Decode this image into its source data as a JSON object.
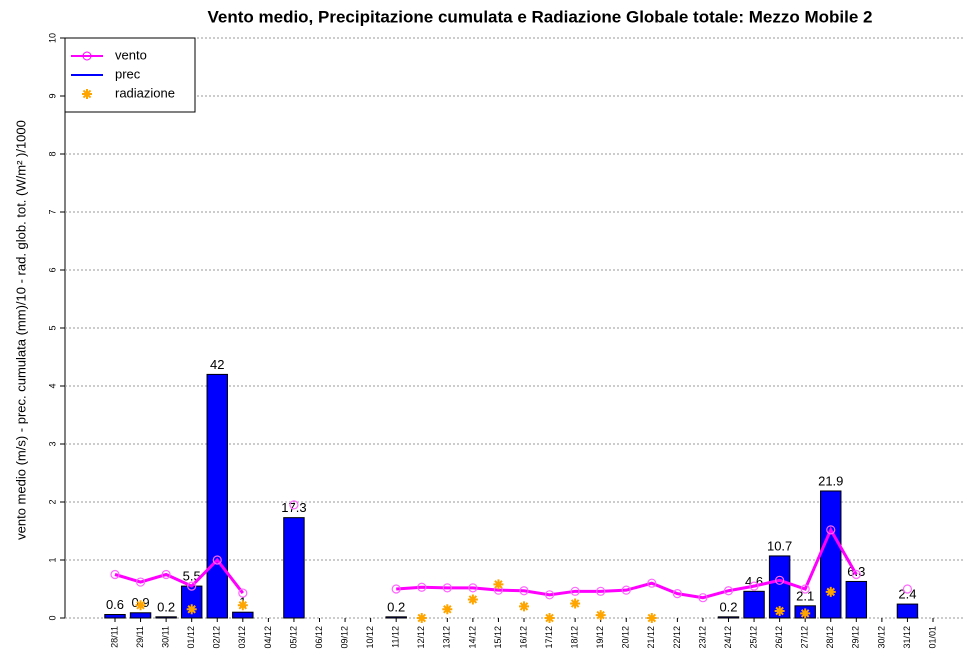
{
  "chart_data": {
    "type": "combo",
    "title": "Vento medio, Precipitazione cumulata e Radiazione Globale totale: Mezzo Mobile 2",
    "y_label": "vento medio (m/s) - prec. cumulata (mm)/10 - rad. glob. tot. (W/m² )/1000",
    "categories": [
      "28/11",
      "29/11",
      "30/11",
      "01/12",
      "02/12",
      "03/12",
      "04/12",
      "05/12",
      "06/12",
      "09/12",
      "10/12",
      "11/12",
      "12/12",
      "13/12",
      "14/12",
      "15/12",
      "16/12",
      "17/12",
      "18/12",
      "19/12",
      "20/12",
      "21/12",
      "22/12",
      "23/12",
      "24/12",
      "25/12",
      "26/12",
      "27/12",
      "28/12",
      "29/12",
      "30/12",
      "31/12",
      "01/01"
    ],
    "ylim": [
      0,
      10
    ],
    "yticks": [
      0,
      1,
      2,
      3,
      4,
      5,
      6,
      7,
      8,
      9,
      10
    ],
    "grid": true,
    "legend": "top-left",
    "series": [
      {
        "name": "vento",
        "type": "line",
        "color": "#ff00ff",
        "values": [
          0.75,
          0.62,
          0.75,
          0.55,
          1.0,
          0.43,
          null,
          1.95,
          null,
          null,
          null,
          0.5,
          0.53,
          0.52,
          0.52,
          0.48,
          0.47,
          0.4,
          0.46,
          0.46,
          0.48,
          0.6,
          0.42,
          0.35,
          0.47,
          0.55,
          0.65,
          0.5,
          1.52,
          0.75,
          null,
          0.5,
          null
        ]
      },
      {
        "name": "prec",
        "type": "bar",
        "color": "#0000ff",
        "values": [
          0.06,
          0.09,
          0.02,
          0.55,
          4.2,
          0.1,
          null,
          1.73,
          null,
          null,
          null,
          0.02,
          null,
          null,
          null,
          null,
          null,
          null,
          null,
          null,
          null,
          null,
          null,
          null,
          0.02,
          0.46,
          1.07,
          0.21,
          2.19,
          0.63,
          null,
          0.24,
          null
        ],
        "value_labels": [
          "0.6",
          "0.9",
          "0.2",
          "5.5",
          "42",
          "1",
          null,
          "17.3",
          null,
          null,
          null,
          "0.2",
          null,
          null,
          null,
          null,
          null,
          null,
          null,
          null,
          null,
          null,
          null,
          null,
          "0.2",
          "4.6",
          "10.7",
          "2.1",
          "21.9",
          "6.3",
          null,
          "2.4",
          null
        ]
      },
      {
        "name": "radiazione",
        "type": "scatter",
        "color": "#ffa500",
        "values": [
          null,
          0.22,
          null,
          0.15,
          null,
          0.22,
          null,
          null,
          null,
          null,
          null,
          null,
          0,
          0.15,
          0.32,
          0.58,
          0.2,
          0,
          0.25,
          0.05,
          null,
          0,
          null,
          null,
          null,
          null,
          0.12,
          0.08,
          0.45,
          null,
          null,
          null,
          null
        ]
      }
    ]
  }
}
